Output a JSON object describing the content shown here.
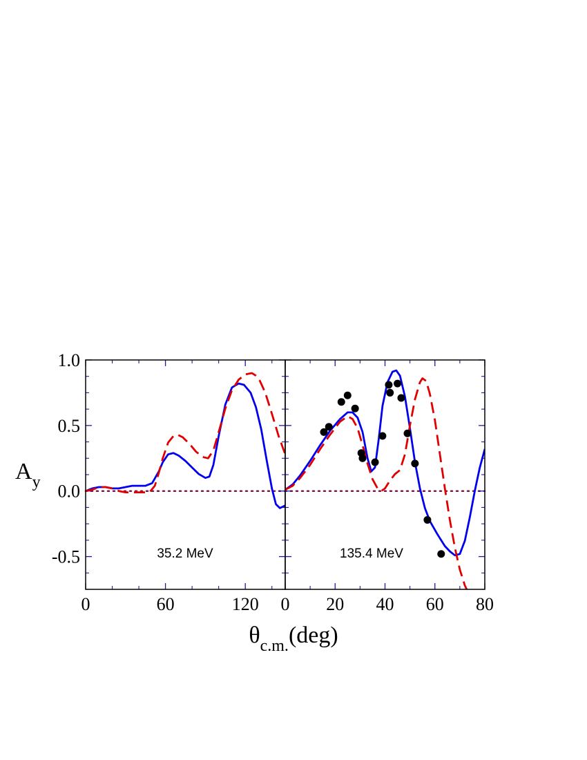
{
  "axes": {
    "ylabel_main": "A",
    "ylabel_sub": "y",
    "xlabel_main": "θ",
    "xlabel_sub": "c.m.",
    "xlabel_unit": "(deg)"
  },
  "colors": {
    "axis": "#000000",
    "tick": "#1a1aa0",
    "solid": "#0000ee",
    "dashed": "#e00000",
    "zero_line": "#7a1a4a",
    "points": "#000000"
  },
  "chart_data": [
    {
      "type": "line",
      "annotation": "35.2 MeV",
      "xlim": [
        0,
        150
      ],
      "ylim": [
        -0.75,
        1.0
      ],
      "xticks": [
        0,
        60,
        120
      ],
      "xtick_labels": [
        "0",
        "60",
        "120"
      ],
      "yticks": [
        -0.5,
        0.0,
        0.5,
        1.0
      ],
      "ytick_labels": [
        "-0.5",
        "0.0",
        "0.5",
        "1.0"
      ],
      "series": [
        {
          "style": "solid",
          "x": [
            0,
            5,
            10,
            15,
            20,
            25,
            30,
            35,
            40,
            45,
            50,
            55,
            58,
            62,
            66,
            70,
            75,
            80,
            85,
            90,
            93,
            96,
            100,
            105,
            110,
            115,
            119,
            124,
            128,
            132,
            136,
            140,
            143,
            146,
            150
          ],
          "y": [
            0.0,
            0.02,
            0.03,
            0.03,
            0.02,
            0.02,
            0.03,
            0.04,
            0.04,
            0.04,
            0.06,
            0.15,
            0.22,
            0.28,
            0.29,
            0.27,
            0.23,
            0.18,
            0.13,
            0.1,
            0.11,
            0.2,
            0.42,
            0.66,
            0.79,
            0.82,
            0.81,
            0.75,
            0.64,
            0.47,
            0.24,
            0.02,
            -0.1,
            -0.13,
            -0.11
          ]
        },
        {
          "style": "dashed",
          "x": [
            0,
            5,
            10,
            15,
            20,
            25,
            30,
            35,
            40,
            45,
            48,
            52,
            55,
            58,
            62,
            66,
            69,
            73,
            78,
            83,
            88,
            92,
            96,
            100,
            105,
            110,
            115,
            120,
            125,
            128,
            131,
            135,
            140,
            145,
            150
          ],
          "y": [
            0.0,
            0.01,
            0.03,
            0.03,
            0.02,
            0.0,
            -0.01,
            -0.01,
            -0.01,
            -0.01,
            -0.01,
            0.04,
            0.14,
            0.25,
            0.37,
            0.42,
            0.43,
            0.41,
            0.36,
            0.3,
            0.26,
            0.25,
            0.31,
            0.45,
            0.63,
            0.77,
            0.85,
            0.89,
            0.9,
            0.88,
            0.84,
            0.75,
            0.59,
            0.42,
            0.28
          ]
        }
      ]
    },
    {
      "type": "line",
      "annotation": "135.4 MeV",
      "xlim": [
        0,
        80
      ],
      "ylim": [
        -0.75,
        1.0
      ],
      "xticks": [
        0,
        20,
        40,
        60,
        80
      ],
      "xtick_labels": [
        "0",
        "20",
        "40",
        "60",
        "80"
      ],
      "yticks": [
        -0.5,
        0.0,
        0.5,
        1.0
      ],
      "series": [
        {
          "style": "solid",
          "x": [
            0,
            3,
            6,
            10,
            14,
            18,
            22,
            25,
            27,
            29,
            31,
            33,
            34.5,
            36,
            37.5,
            39,
            41,
            43,
            44.5,
            46,
            48,
            50,
            52,
            54,
            56,
            58,
            61,
            64,
            66,
            68,
            70,
            72,
            74,
            76,
            78,
            80
          ],
          "y": [
            0.01,
            0.05,
            0.12,
            0.23,
            0.35,
            0.46,
            0.55,
            0.6,
            0.6,
            0.56,
            0.45,
            0.25,
            0.15,
            0.18,
            0.4,
            0.65,
            0.83,
            0.91,
            0.92,
            0.88,
            0.72,
            0.48,
            0.22,
            0.02,
            -0.13,
            -0.23,
            -0.33,
            -0.42,
            -0.46,
            -0.49,
            -0.48,
            -0.38,
            -0.2,
            0.0,
            0.18,
            0.32
          ]
        },
        {
          "style": "dashed",
          "x": [
            0,
            3,
            6,
            10,
            14,
            18,
            22,
            25,
            27,
            29,
            31,
            33,
            35,
            37,
            38.5,
            40,
            42,
            44,
            46,
            48,
            50,
            52,
            54,
            55,
            56.5,
            58,
            60,
            62,
            64,
            66,
            68,
            70,
            72,
            74
          ],
          "y": [
            0.01,
            0.04,
            0.1,
            0.2,
            0.32,
            0.43,
            0.53,
            0.57,
            0.55,
            0.48,
            0.35,
            0.21,
            0.09,
            0.02,
            0.0,
            0.02,
            0.08,
            0.13,
            0.16,
            0.28,
            0.5,
            0.7,
            0.83,
            0.86,
            0.84,
            0.74,
            0.54,
            0.28,
            0.02,
            -0.22,
            -0.43,
            -0.6,
            -0.72,
            -0.8
          ]
        },
        {
          "style": "points",
          "x": [
            15.5,
            17.5,
            22.5,
            25,
            28,
            30.5,
            31,
            36,
            39,
            41.5,
            42,
            45,
            46.5,
            49,
            52,
            57,
            62.5
          ],
          "y": [
            0.45,
            0.49,
            0.68,
            0.73,
            0.63,
            0.29,
            0.25,
            0.22,
            0.42,
            0.81,
            0.75,
            0.82,
            0.71,
            0.44,
            0.21,
            -0.22,
            -0.48
          ]
        }
      ]
    }
  ]
}
